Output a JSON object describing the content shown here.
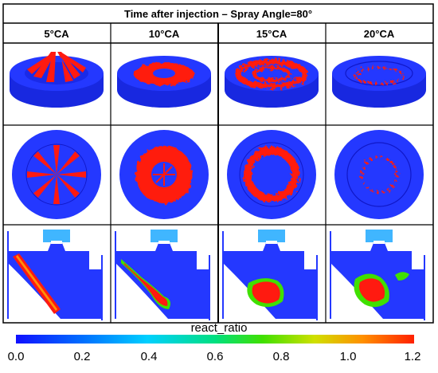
{
  "figure": {
    "header": "Time after injection – Spray Angle=80°",
    "columns": [
      "5°CA",
      "10°CA",
      "15°CA",
      "20°CA"
    ],
    "colorbar": {
      "label": "react_ratio",
      "ticks": [
        "0.0",
        "0.2",
        "0.4",
        "0.6",
        "0.8",
        "1.0",
        "1.2"
      ],
      "colors": [
        "#1010ff",
        "#00a0ff",
        "#00e0c0",
        "#20e020",
        "#d0e000",
        "#ffa000",
        "#ff2000"
      ]
    },
    "palette": {
      "background_blue": "#1f2dff",
      "spray_red": "#ff1a10",
      "dark_blue": "#1018c8",
      "light_blue": "#41b6ff",
      "grid": "#000000"
    }
  }
}
